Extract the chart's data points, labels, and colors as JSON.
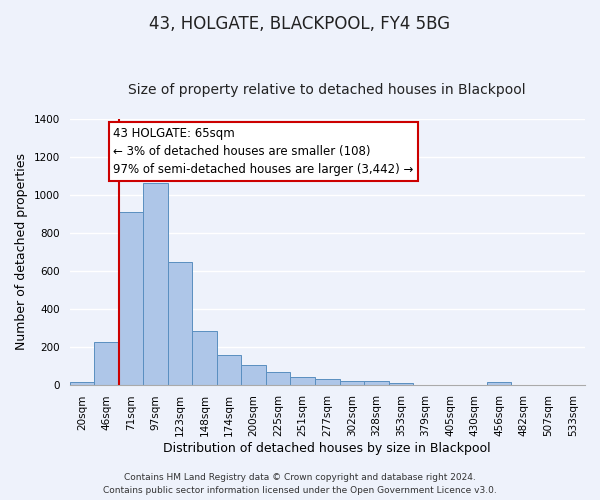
{
  "title": "43, HOLGATE, BLACKPOOL, FY4 5BG",
  "subtitle": "Size of property relative to detached houses in Blackpool",
  "xlabel": "Distribution of detached houses by size in Blackpool",
  "ylabel": "Number of detached properties",
  "bar_labels": [
    "20sqm",
    "46sqm",
    "71sqm",
    "97sqm",
    "123sqm",
    "148sqm",
    "174sqm",
    "200sqm",
    "225sqm",
    "251sqm",
    "277sqm",
    "302sqm",
    "328sqm",
    "353sqm",
    "379sqm",
    "405sqm",
    "430sqm",
    "456sqm",
    "482sqm",
    "507sqm",
    "533sqm"
  ],
  "bar_heights": [
    15,
    225,
    910,
    1065,
    645,
    280,
    158,
    105,
    65,
    42,
    27,
    18,
    17,
    10,
    0,
    0,
    0,
    12,
    0,
    0,
    0
  ],
  "bar_color": "#aec6e8",
  "bar_edge_color": "#5a8fc0",
  "vline_color": "#cc0000",
  "ylim": [
    0,
    1400
  ],
  "annotation_title": "43 HOLGATE: 65sqm",
  "annotation_line1": "← 3% of detached houses are smaller (108)",
  "annotation_line2": "97% of semi-detached houses are larger (3,442) →",
  "annotation_box_color": "#ffffff",
  "annotation_box_edge": "#cc0000",
  "footnote1": "Contains HM Land Registry data © Crown copyright and database right 2024.",
  "footnote2": "Contains public sector information licensed under the Open Government Licence v3.0.",
  "background_color": "#eef2fb",
  "plot_background_color": "#eef2fb",
  "grid_color": "#ffffff",
  "title_fontsize": 12,
  "subtitle_fontsize": 10,
  "ylabel_fontsize": 9,
  "xlabel_fontsize": 9,
  "tick_fontsize": 7.5,
  "footnote_fontsize": 6.5,
  "ann_fontsize": 8.5
}
